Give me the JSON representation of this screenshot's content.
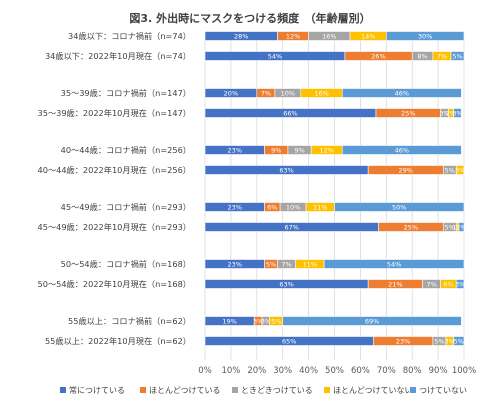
{
  "chart_data": {
    "type": "bar",
    "stacked": true,
    "orientation": "horizontal",
    "percent_stacked": true,
    "title": "図3. 外出時にマスクをつける頻度　（年齢層別）",
    "categories": [
      "34歳以下：コロナ禍前（n=74）",
      "34歳以下：2022年10月現在（n=74）",
      "35～39歳：コロナ禍前（n=147）",
      "35～39歳：2022年10月現在（n=147）",
      "40～44歳：コロナ禍前（n=256）",
      "40～44歳：2022年10月現在（n=256）",
      "45～49歳：コロナ禍前（n=293）",
      "45～49歳：2022年10月現在（n=293）",
      "50～54歳：コロナ禍前（n=168）",
      "50～54歳：2022年10月現在（n=168）",
      "55歳以上：コロナ禍前（n=62）",
      "55歳以上：2022年10月現在（n=62）"
    ],
    "series": [
      {
        "name": "常につけている",
        "color": "#4472C4",
        "values": [
          28,
          54,
          20,
          66,
          23,
          63,
          23,
          67,
          23,
          63,
          19,
          65
        ]
      },
      {
        "name": "ほとんどつけている",
        "color": "#ED7D31",
        "values": [
          12,
          26,
          7,
          25,
          9,
          29,
          6,
          25,
          5,
          21,
          3,
          23
        ]
      },
      {
        "name": "ときどきつけている",
        "color": "#A5A5A5",
        "values": [
          16,
          8,
          10,
          3,
          9,
          5,
          10,
          5,
          7,
          7,
          3,
          5
        ]
      },
      {
        "name": "ほとんどつけていない",
        "color": "#FFC000",
        "values": [
          14,
          7,
          16,
          2,
          12,
          3,
          11,
          1,
          11,
          6,
          5,
          3
        ]
      },
      {
        "name": "つけていない",
        "color": "#5B9BD5",
        "values": [
          30,
          5,
          46,
          3,
          46,
          0,
          50,
          2,
          54,
          3,
          69,
          5
        ]
      }
    ],
    "data_labels": [
      [
        "28%",
        "12%",
        "16%",
        "14%",
        "30%"
      ],
      [
        "54%",
        "26%",
        "8%",
        "7%",
        "5%"
      ],
      [
        "20%",
        "7%",
        "10%",
        "16%",
        "46%"
      ],
      [
        "66%",
        "25%",
        "3%",
        "2%",
        "3%"
      ],
      [
        "23%",
        "9%",
        "9%",
        "12%",
        "46%"
      ],
      [
        "63%",
        "29%",
        "5%",
        "3%",
        ""
      ],
      [
        "23%",
        "6%",
        "10%",
        "11%",
        "50%"
      ],
      [
        "67%",
        "25%",
        "5%",
        "1%",
        "2%"
      ],
      [
        "23%",
        "5%",
        "7%",
        "11%",
        "54%"
      ],
      [
        "63%",
        "21%",
        "7%",
        "6%",
        "3%"
      ],
      [
        "19%",
        "3%",
        "3%",
        "5%",
        "69%"
      ],
      [
        "65%",
        "23%",
        "5%",
        "3%",
        "5%"
      ]
    ],
    "xlim": [
      0,
      100
    ],
    "xticks": [
      "0%",
      "10%",
      "20%",
      "30%",
      "40%",
      "50%",
      "60%",
      "70%",
      "80%",
      "90%",
      "100%"
    ],
    "grid": true,
    "legend_position": "bottom"
  }
}
